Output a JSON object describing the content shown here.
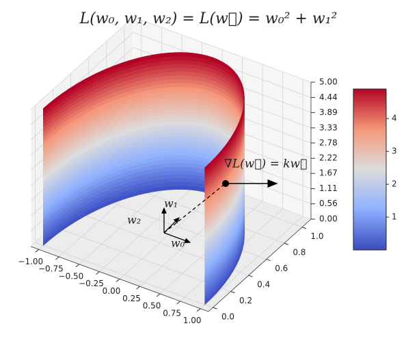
{
  "chart_data": {
    "type": "surface3d",
    "title": "L(w₀, w₁, w₂) = L(w⃗) = w₀² + w₁²",
    "gradient_label": "∇L(w⃗) = kw⃗",
    "basis_labels": [
      "w₀",
      "w₁",
      "w₂"
    ],
    "xlim": [
      -1.1,
      1.1
    ],
    "xticks": [
      {
        "value": -1,
        "label": "−1.00"
      },
      {
        "value": -0.75,
        "label": "−0.75"
      },
      {
        "value": -0.5,
        "label": "−0.50"
      },
      {
        "value": -0.25,
        "label": "−0.25"
      },
      {
        "value": 0,
        "label": "0.00"
      },
      {
        "value": 0.25,
        "label": "0.25"
      },
      {
        "value": 0.5,
        "label": "0.50"
      },
      {
        "value": 0.75,
        "label": "0.75"
      },
      {
        "value": 1,
        "label": "1.00"
      }
    ],
    "ylim": [
      -0.05,
      1.1
    ],
    "yticks": [
      {
        "value": 0,
        "label": "0.0"
      },
      {
        "value": 0.2,
        "label": "0.2"
      },
      {
        "value": 0.4,
        "label": "0.4"
      },
      {
        "value": 0.6,
        "label": "0.6"
      },
      {
        "value": 0.8,
        "label": "0.8"
      },
      {
        "value": 1,
        "label": "1.0"
      }
    ],
    "zlim": [
      0,
      5
    ],
    "zticks": [
      {
        "value": 0,
        "label": "0.00"
      },
      {
        "value": 0.56,
        "label": "0.56"
      },
      {
        "value": 1.11,
        "label": "1.11"
      },
      {
        "value": 1.67,
        "label": "1.67"
      },
      {
        "value": 2.22,
        "label": "2.22"
      },
      {
        "value": 2.78,
        "label": "2.78"
      },
      {
        "value": 3.33,
        "label": "3.33"
      },
      {
        "value": 3.89,
        "label": "3.89"
      },
      {
        "value": 4.44,
        "label": "4.44"
      },
      {
        "value": 5,
        "label": "5.00"
      }
    ],
    "colormap": "coolwarm",
    "clim": [
      0,
      4.9
    ],
    "cticks": [
      1,
      2,
      3,
      4
    ],
    "grid": true
  }
}
